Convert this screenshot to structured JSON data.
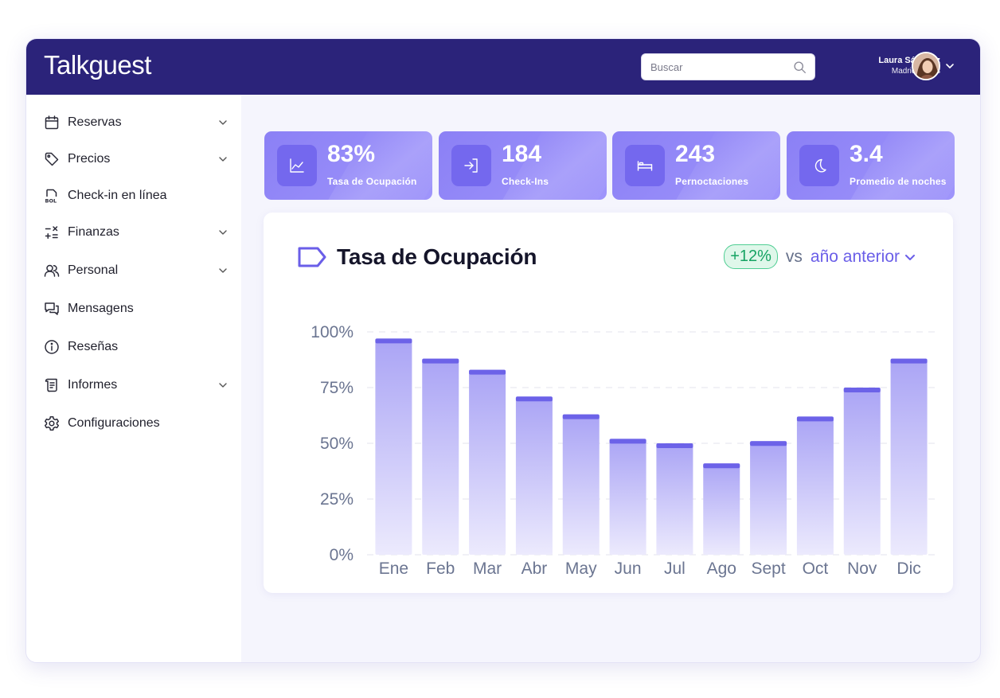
{
  "app": {
    "name": "Talkguest"
  },
  "search": {
    "placeholder": "Buscar"
  },
  "user": {
    "name": "Laura Sánchez",
    "hotel": "Madrid Suites"
  },
  "sidebar": {
    "items": [
      {
        "label": "Reservas",
        "icon": "calendar-icon",
        "expandable": true
      },
      {
        "label": "Precios",
        "icon": "tag-icon",
        "expandable": true
      },
      {
        "label": "Check-in en línea",
        "icon": "bol-icon",
        "expandable": false
      },
      {
        "label": "Finanzas",
        "icon": "calculator-icon",
        "expandable": true
      },
      {
        "label": "Personal",
        "icon": "users-icon",
        "expandable": true
      },
      {
        "label": "Mensagens",
        "icon": "chat-icon",
        "expandable": false
      },
      {
        "label": "Reseñas",
        "icon": "info-icon",
        "expandable": false
      },
      {
        "label": "Informes",
        "icon": "scroll-icon",
        "expandable": true
      },
      {
        "label": "Configuraciones",
        "icon": "gear-icon",
        "expandable": false
      }
    ]
  },
  "kpis": [
    {
      "value": "83%",
      "label": "Tasa de Ocupación",
      "icon": "trend-line-icon"
    },
    {
      "value": "184",
      "label": "Check-Ins",
      "icon": "sign-in-icon"
    },
    {
      "value": "243",
      "label": "Pernoctaciones",
      "icon": "bed-icon"
    },
    {
      "value": "3.4",
      "label": "Promedio de noches",
      "icon": "moon-icon"
    }
  ],
  "occupancy": {
    "title": "Tasa de Ocupación",
    "delta": "+12%",
    "vs": "vs",
    "period": "año anterior"
  },
  "colors": {
    "topbar": "#2b237a",
    "accent": "#6a5ee8",
    "kpi": "#8b80f5",
    "bar_cap": "#6c62e8",
    "bar_top": "#aaa4f5",
    "bar_bottom": "#eceafd",
    "positive": "#16a363"
  },
  "chart_data": {
    "type": "bar",
    "categories": [
      "Ene",
      "Feb",
      "Mar",
      "Abr",
      "May",
      "Jun",
      "Jul",
      "Ago",
      "Sept",
      "Oct",
      "Nov",
      "Dic"
    ],
    "values": [
      97,
      88,
      83,
      71,
      63,
      52,
      50,
      41,
      51,
      62,
      75,
      88
    ],
    "yticks": [
      "0%",
      "25%",
      "50%",
      "75%",
      "100%"
    ],
    "ylim": [
      0,
      100
    ],
    "grid": true,
    "legend": "none"
  }
}
